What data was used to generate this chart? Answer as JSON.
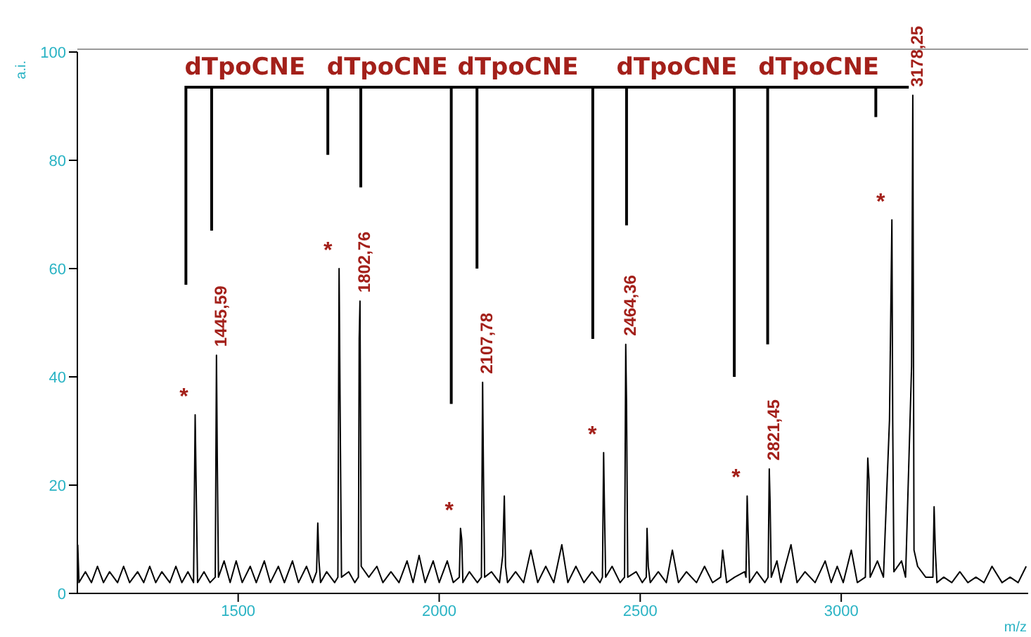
{
  "chart_data": {
    "type": "line",
    "xlabel": "m/z",
    "ylabel": "a.i.",
    "x": [
      1101,
      1104,
      1120,
      1135,
      1150,
      1165,
      1180,
      1200,
      1215,
      1230,
      1250,
      1265,
      1280,
      1295,
      1310,
      1330,
      1345,
      1360,
      1375,
      1389,
      1393,
      1396,
      1399,
      1415,
      1430,
      1443,
      1446,
      1448,
      1451,
      1465,
      1480,
      1495,
      1510,
      1530,
      1545,
      1565,
      1580,
      1600,
      1615,
      1635,
      1650,
      1670,
      1685,
      1695,
      1698,
      1701,
      1705,
      1720,
      1740,
      1748,
      1751,
      1754,
      1757,
      1775,
      1790,
      1799,
      1801,
      1803,
      1806,
      1825,
      1845,
      1860,
      1880,
      1900,
      1920,
      1935,
      1950,
      1965,
      1985,
      2000,
      2020,
      2035,
      2050,
      2053,
      2056,
      2059,
      2075,
      2095,
      2105,
      2108,
      2110,
      2113,
      2130,
      2150,
      2158,
      2162,
      2165,
      2170,
      2190,
      2210,
      2228,
      2245,
      2265,
      2285,
      2305,
      2320,
      2340,
      2360,
      2380,
      2400,
      2406,
      2409,
      2411,
      2414,
      2430,
      2450,
      2461,
      2464,
      2466,
      2469,
      2490,
      2505,
      2515,
      2517,
      2520,
      2525,
      2545,
      2565,
      2580,
      2595,
      2615,
      2640,
      2660,
      2680,
      2700,
      2705,
      2715,
      2735,
      2760,
      2763,
      2766,
      2769,
      2772,
      2790,
      2810,
      2818,
      2821,
      2823,
      2826,
      2840,
      2850,
      2875,
      2890,
      2910,
      2935,
      2960,
      2975,
      2990,
      3005,
      3025,
      3040,
      3060,
      3066,
      3069,
      3072,
      3090,
      3105,
      3120,
      3126,
      3128,
      3131,
      3150,
      3160,
      3175,
      3178,
      3181,
      3190,
      3210,
      3228,
      3231,
      3234,
      3238,
      3255,
      3275,
      3295,
      3315,
      3335,
      3355,
      3375,
      3400,
      3420,
      3440,
      3460
    ],
    "series": [
      {
        "color": "#000000",
        "values": [
          9,
          2,
          4,
          2,
          5,
          2,
          4,
          2,
          5,
          2,
          4,
          2,
          5,
          2,
          4,
          2,
          5,
          2,
          4,
          2,
          33,
          17,
          2,
          4,
          2,
          3,
          44,
          25,
          3,
          6,
          2,
          6,
          2,
          5,
          2,
          6,
          2,
          5,
          2,
          6,
          2,
          5,
          2,
          4,
          13,
          6,
          2,
          4,
          2,
          3,
          60,
          30,
          3,
          4,
          2,
          3,
          47,
          54,
          5,
          3,
          5,
          2,
          4,
          2,
          6,
          2,
          7,
          2,
          6,
          2,
          6,
          2,
          3,
          12,
          10,
          2,
          4,
          2,
          3,
          39,
          23,
          3,
          4,
          2,
          7,
          18,
          5,
          2,
          4,
          2,
          8,
          2,
          5,
          2,
          9,
          2,
          5,
          2,
          4,
          2,
          3,
          26,
          16,
          3,
          5,
          2,
          3,
          46,
          35,
          3,
          4,
          2,
          3,
          12,
          5,
          2,
          4,
          2,
          8,
          2,
          4,
          2,
          5,
          2,
          3,
          8,
          2,
          3,
          4,
          3,
          18,
          10,
          2,
          4,
          2,
          3,
          23,
          17,
          3,
          6,
          2,
          9,
          2,
          4,
          2,
          6,
          2,
          5,
          2,
          8,
          2,
          3,
          25,
          21,
          3,
          6,
          3,
          32,
          69,
          32,
          4,
          6,
          3,
          42,
          92,
          8,
          5,
          3,
          3,
          16,
          8,
          2,
          3,
          2,
          4,
          2,
          3,
          2,
          5,
          2,
          3,
          2,
          5
        ]
      }
    ],
    "xlim": [
      1100,
      3465
    ],
    "xticks": [
      1500,
      2000,
      2500,
      3000
    ],
    "ylim": [
      0,
      100
    ],
    "yticks": [
      0,
      20,
      40,
      60,
      80,
      100
    ],
    "grid": false,
    "legend": false,
    "marker": "none",
    "line_style": "solid",
    "annotations": [
      "dTpoCNE",
      "dTpoCNE",
      "dTpoCNE",
      "dTpoCNE",
      "dTpoCNE",
      {
        "text": "1445,59",
        "x": 1446,
        "y": 44
      },
      {
        "text": "1802,76",
        "x": 1803,
        "y": 54
      },
      {
        "text": "2107,78",
        "x": 2108,
        "y": 39
      },
      {
        "text": "2464,36",
        "x": 2464,
        "y": 46
      },
      {
        "text": "2821,45",
        "x": 2821,
        "y": 23
      },
      {
        "text": "3178,25",
        "x": 3178,
        "y": 92
      },
      {
        "text": "*",
        "x": 1393,
        "y": 33
      },
      {
        "text": "*",
        "x": 1751,
        "y": 60
      },
      {
        "text": "*",
        "x": 2053,
        "y": 12
      },
      {
        "text": "*",
        "x": 2409,
        "y": 26
      },
      {
        "text": "*",
        "x": 2766,
        "y": 18
      },
      {
        "text": "*",
        "x": 3126,
        "y": 69
      }
    ]
  }
}
